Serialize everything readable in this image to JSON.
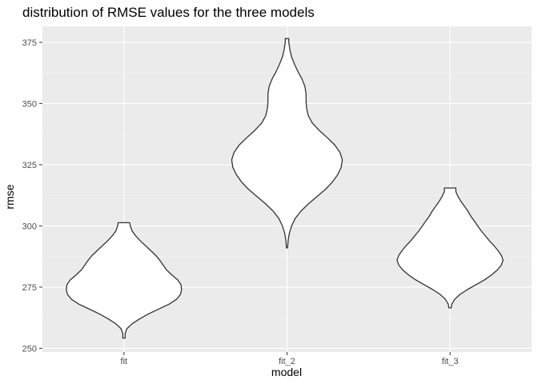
{
  "chart_data": {
    "type": "violin",
    "title": "distribution of RMSE values for the three models",
    "xlabel": "model",
    "ylabel": "rmse",
    "categories": [
      "fit",
      "fit_2",
      "fit_3"
    ],
    "yticks": [
      250,
      275,
      300,
      325,
      350,
      375
    ],
    "ylim": [
      248.5,
      381.5
    ],
    "grid": true,
    "colors": {
      "panel": "#ebebeb",
      "grid_major": "#ffffff",
      "violin_fill": "#ffffff",
      "violin_outline": "#333333"
    },
    "series": [
      {
        "category": "fit",
        "range": [
          254.2,
          301.3
        ],
        "density_profile": [
          [
            254.2,
            0.02
          ],
          [
            256,
            0.02
          ],
          [
            258,
            0.05
          ],
          [
            260,
            0.14
          ],
          [
            262,
            0.27
          ],
          [
            264,
            0.42
          ],
          [
            266,
            0.6
          ],
          [
            268,
            0.78
          ],
          [
            270,
            0.91
          ],
          [
            272,
            0.98
          ],
          [
            274,
            1.0
          ],
          [
            276,
            0.99
          ],
          [
            278,
            0.93
          ],
          [
            280,
            0.83
          ],
          [
            282,
            0.74
          ],
          [
            284,
            0.68
          ],
          [
            286,
            0.62
          ],
          [
            288,
            0.55
          ],
          [
            290,
            0.46
          ],
          [
            292,
            0.37
          ],
          [
            294,
            0.28
          ],
          [
            296,
            0.2
          ],
          [
            298,
            0.14
          ],
          [
            300,
            0.11
          ],
          [
            301.3,
            0.1
          ]
        ]
      },
      {
        "category": "fit_2",
        "range": [
          291,
          376.5
        ],
        "density_profile": [
          [
            291,
            0.01
          ],
          [
            294,
            0.02
          ],
          [
            297,
            0.04
          ],
          [
            300,
            0.08
          ],
          [
            303,
            0.14
          ],
          [
            306,
            0.24
          ],
          [
            309,
            0.37
          ],
          [
            312,
            0.52
          ],
          [
            315,
            0.67
          ],
          [
            318,
            0.79
          ],
          [
            321,
            0.88
          ],
          [
            324,
            0.94
          ],
          [
            327,
            0.96
          ],
          [
            330,
            0.92
          ],
          [
            333,
            0.83
          ],
          [
            336,
            0.7
          ],
          [
            339,
            0.56
          ],
          [
            342,
            0.44
          ],
          [
            345,
            0.37
          ],
          [
            348,
            0.34
          ],
          [
            351,
            0.33
          ],
          [
            354,
            0.33
          ],
          [
            357,
            0.31
          ],
          [
            360,
            0.26
          ],
          [
            363,
            0.19
          ],
          [
            366,
            0.13
          ],
          [
            369,
            0.08
          ],
          [
            372,
            0.05
          ],
          [
            375,
            0.03
          ],
          [
            376.5,
            0.03
          ]
        ]
      },
      {
        "category": "fit_3",
        "range": [
          266.5,
          315.5
        ],
        "density_profile": [
          [
            266.5,
            0.02
          ],
          [
            268,
            0.03
          ],
          [
            270,
            0.08
          ],
          [
            272,
            0.17
          ],
          [
            274,
            0.3
          ],
          [
            276,
            0.45
          ],
          [
            278,
            0.6
          ],
          [
            280,
            0.72
          ],
          [
            282,
            0.82
          ],
          [
            284,
            0.89
          ],
          [
            286,
            0.92
          ],
          [
            288,
            0.89
          ],
          [
            290,
            0.83
          ],
          [
            292,
            0.76
          ],
          [
            294,
            0.68
          ],
          [
            296,
            0.61
          ],
          [
            298,
            0.54
          ],
          [
            300,
            0.48
          ],
          [
            302,
            0.42
          ],
          [
            304,
            0.36
          ],
          [
            306,
            0.31
          ],
          [
            308,
            0.25
          ],
          [
            310,
            0.19
          ],
          [
            312,
            0.14
          ],
          [
            314,
            0.1
          ],
          [
            315.5,
            0.1
          ]
        ]
      }
    ]
  }
}
